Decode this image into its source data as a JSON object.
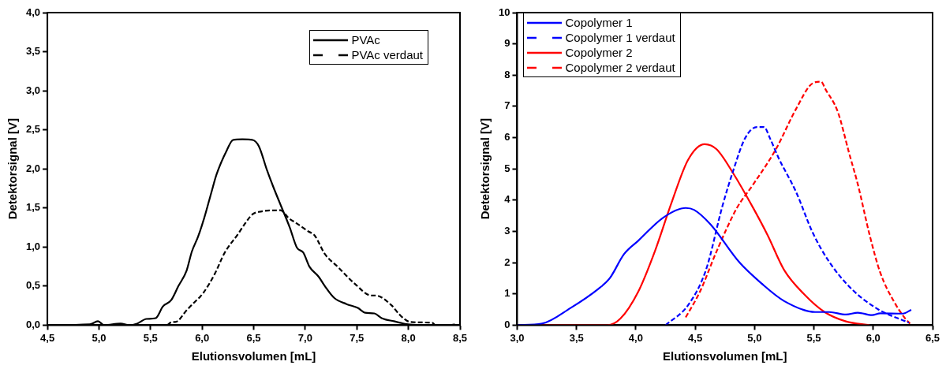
{
  "chart_data": [
    {
      "type": "line",
      "xlabel": "Elutionsvolumen [mL]",
      "ylabel": "Detektorsignal [V]",
      "xlim": [
        4.5,
        8.5
      ],
      "ylim": [
        0,
        4
      ],
      "xticks": [
        {
          "value": 4.5,
          "label": "4,5"
        },
        {
          "value": 5,
          "label": "5,0"
        },
        {
          "value": 5.5,
          "label": "5,5"
        },
        {
          "value": 6,
          "label": "6,0"
        },
        {
          "value": 6.5,
          "label": "6,5"
        },
        {
          "value": 7,
          "label": "7,0"
        },
        {
          "value": 7.5,
          "label": "7,5"
        },
        {
          "value": 8,
          "label": "8,0"
        },
        {
          "value": 8.5,
          "label": "8,5"
        }
      ],
      "yticks": [
        {
          "value": 0,
          "label": "0,0"
        },
        {
          "value": 0.5,
          "label": "0,5"
        },
        {
          "value": 1,
          "label": "1,0"
        },
        {
          "value": 1.5,
          "label": "1,5"
        },
        {
          "value": 2,
          "label": "2,0"
        },
        {
          "value": 2.5,
          "label": "2,5"
        },
        {
          "value": 3,
          "label": "3,0"
        },
        {
          "value": 3.5,
          "label": "3,5"
        },
        {
          "value": 4,
          "label": "4,0"
        }
      ],
      "grid": false,
      "legend": "top right",
      "marker": "none",
      "series": [
        {
          "name": "PVAc",
          "color": "#000000",
          "line_style": "solid",
          "x": [
            4.51,
            4.91,
            4.99,
            5.05,
            5.21,
            5.29,
            5.37,
            5.46,
            5.55,
            5.62,
            5.7,
            5.77,
            5.85,
            5.9,
            5.96,
            6.02,
            6.09,
            6.14,
            6.24,
            6.3,
            6.39,
            6.49,
            6.55,
            6.63,
            6.69,
            6.77,
            6.85,
            6.92,
            6.98,
            7.04,
            7.13,
            7.19,
            7.28,
            7.4,
            7.51,
            7.58,
            7.67,
            7.74,
            7.86,
            8.0,
            8.18,
            8.39,
            8.45
          ],
          "values": [
            0,
            0.01,
            0.05,
            0,
            0.02,
            0,
            0.02,
            0.08,
            0.09,
            0.24,
            0.32,
            0.5,
            0.7,
            0.94,
            1.13,
            1.37,
            1.7,
            1.93,
            2.24,
            2.37,
            2.38,
            2.37,
            2.29,
            1.98,
            1.77,
            1.51,
            1.25,
            0.99,
            0.93,
            0.75,
            0.62,
            0.5,
            0.35,
            0.27,
            0.22,
            0.16,
            0.15,
            0.09,
            0.05,
            0.01,
            0,
            0,
            0.01
          ]
        },
        {
          "name": "PVAc verdaut",
          "color": "#000000",
          "line_style": "dashed",
          "x": [
            5.66,
            5.71,
            5.74,
            5.85,
            5.9,
            6.01,
            6.12,
            6.22,
            6.35,
            6.4,
            6.49,
            6.55,
            6.76,
            6.84,
            6.92,
            7.03,
            7.09,
            7.19,
            7.32,
            7.48,
            7.64,
            7.68,
            7.84,
            7.91,
            8.02,
            8.23,
            8.26
          ],
          "values": [
            0,
            0.04,
            0.04,
            0.19,
            0.26,
            0.41,
            0.65,
            0.93,
            1.17,
            1.27,
            1.42,
            1.45,
            1.47,
            1.37,
            1.3,
            1.2,
            1.15,
            0.91,
            0.74,
            0.53,
            0.38,
            0.38,
            0.25,
            0.14,
            0.04,
            0.03,
            0
          ]
        }
      ]
    },
    {
      "type": "line",
      "xlabel": "Elutionsvolumen [mL]",
      "ylabel": "Detektorsignal [V]",
      "xlim": [
        3,
        6.5
      ],
      "ylim": [
        0,
        10
      ],
      "xticks": [
        {
          "value": 3,
          "label": "3,0"
        },
        {
          "value": 3.5,
          "label": "3,5"
        },
        {
          "value": 4,
          "label": "4,0"
        },
        {
          "value": 4.5,
          "label": "4,5"
        },
        {
          "value": 5,
          "label": "5,0"
        },
        {
          "value": 5.5,
          "label": "5,5"
        },
        {
          "value": 6,
          "label": "6,0"
        },
        {
          "value": 6.5,
          "label": "6,5"
        }
      ],
      "yticks": [
        0,
        1,
        2,
        3,
        4,
        5,
        6,
        7,
        8,
        9,
        10
      ],
      "grid": false,
      "legend": "top left",
      "marker": "none",
      "series": [
        {
          "name": "Copolymer 1",
          "color": "#0000ff",
          "line_style": "solid",
          "x": [
            3.0,
            3.21,
            3.45,
            3.68,
            3.78,
            3.9,
            4.02,
            4.23,
            4.42,
            4.49,
            4.63,
            4.87,
            5.06,
            5.25,
            5.51,
            5.63,
            5.77,
            5.87,
            5.99,
            6.06,
            6.25,
            6.32
          ],
          "values": [
            0,
            0.05,
            0.55,
            1.15,
            1.5,
            2.27,
            2.7,
            3.44,
            3.75,
            3.69,
            3.22,
            2.02,
            1.33,
            0.77,
            0.42,
            0.42,
            0.34,
            0.4,
            0.32,
            0.38,
            0.37,
            0.49
          ]
        },
        {
          "name": "Copolymer 1 verdaut",
          "color": "#0000ff",
          "line_style": "dashed",
          "x": [
            4.25,
            4.44,
            4.59,
            4.73,
            4.82,
            4.92,
            5.02,
            5.08,
            5.13,
            5.2,
            5.35,
            5.49,
            5.63,
            5.82,
            6.04,
            6.3
          ],
          "values": [
            0,
            0.64,
            1.76,
            3.82,
            4.94,
            5.98,
            6.34,
            6.34,
            5.98,
            5.37,
            4.26,
            2.96,
            2.02,
            1.15,
            0.51,
            0.08
          ]
        },
        {
          "name": "Copolymer 2",
          "color": "#ff0000",
          "line_style": "solid",
          "x": [
            3.0,
            3.76,
            3.87,
            4.02,
            4.16,
            4.3,
            4.44,
            4.58,
            4.68,
            4.82,
            4.99,
            5.11,
            5.25,
            5.42,
            5.59,
            5.77,
            5.97
          ],
          "values": [
            0,
            0,
            0.21,
            1.07,
            2.36,
            3.91,
            5.29,
            5.79,
            5.63,
            4.86,
            3.74,
            2.88,
            1.76,
            0.98,
            0.42,
            0.12,
            0
          ]
        },
        {
          "name": "Copolymer 2 verdaut",
          "color": "#ff0000",
          "line_style": "dashed",
          "x": [
            4.42,
            4.54,
            4.68,
            4.85,
            4.99,
            5.18,
            5.35,
            5.49,
            5.56,
            5.6,
            5.7,
            5.8,
            5.87,
            5.97,
            6.06,
            6.18,
            6.27,
            6.31
          ],
          "values": [
            0.25,
            1.07,
            2.36,
            3.74,
            4.51,
            5.63,
            6.92,
            7.74,
            7.79,
            7.53,
            6.84,
            5.46,
            4.51,
            2.88,
            1.67,
            0.72,
            0.21,
            0.05
          ]
        }
      ]
    }
  ]
}
